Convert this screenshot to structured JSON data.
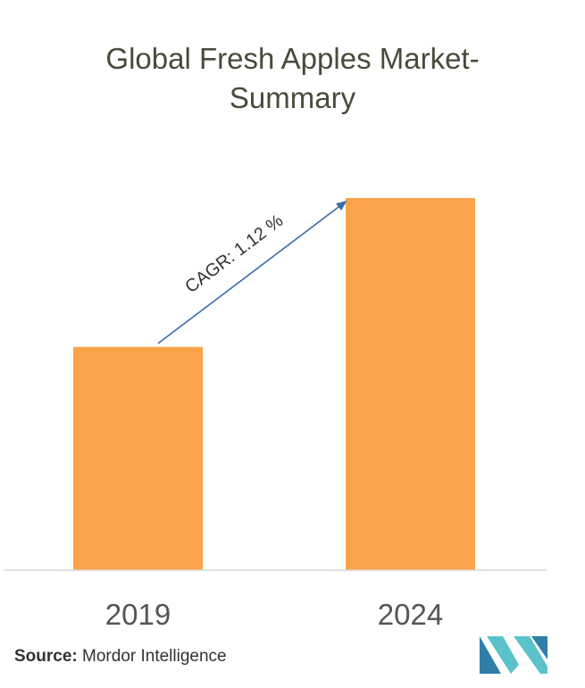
{
  "chart_data": {
    "type": "bar",
    "title": "Global Fresh Apples Market-",
    "title_line2": "Summary",
    "categories": [
      "2019",
      "2024"
    ],
    "values": [
      0.6,
      1.0
    ],
    "ylim": [
      0,
      1.0
    ],
    "grid": false,
    "bar_color": "#FBA349",
    "annotation": {
      "text": "CAGR: 1.12 %",
      "arrow_color": "#3A6EA5",
      "from_category": "2019",
      "to_category": "2024"
    }
  },
  "source": {
    "label": "Source:",
    "name": "Mordor Intelligence"
  },
  "logo": {
    "colors": [
      "#2F7FA9",
      "#5BC2C9"
    ]
  }
}
